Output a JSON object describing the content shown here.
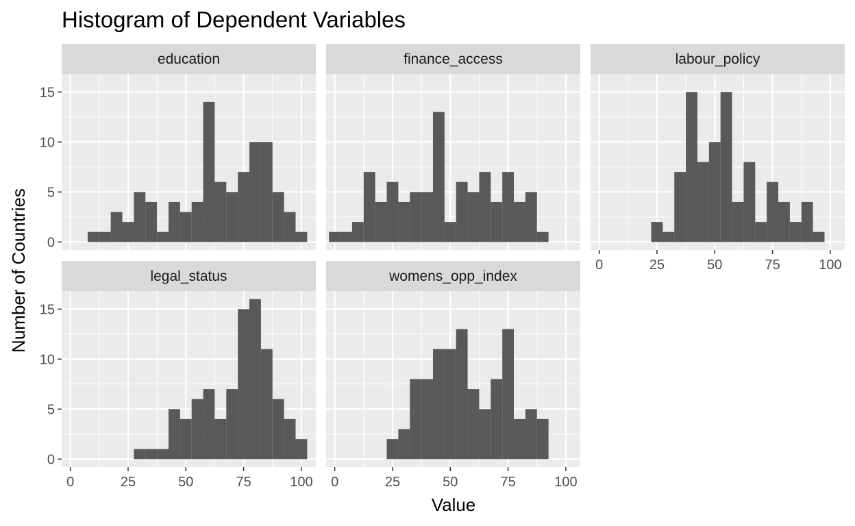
{
  "chart_data": {
    "type": "histogram",
    "title": "Histogram of Dependent Variables",
    "xlabel": "Value",
    "ylabel": "Number of Countries",
    "xlim": [
      -3.75,
      106.25
    ],
    "ylim": [
      -0.8,
      16.8
    ],
    "x_ticks": [
      0,
      25,
      50,
      75,
      100
    ],
    "y_ticks": [
      0,
      5,
      10,
      15
    ],
    "bin_width": 5,
    "grid": true,
    "panel_background": "#ebebeb",
    "strip_background": "#d9d9d9",
    "bar_color": "#595959",
    "facets": [
      {
        "label": "education",
        "bins": [
          10,
          15,
          20,
          25,
          30,
          35,
          40,
          45,
          50,
          55,
          60,
          65,
          70,
          75,
          80,
          85,
          90,
          95,
          100
        ],
        "counts": [
          1,
          1,
          3,
          2,
          5,
          4,
          1,
          4,
          3,
          4,
          14,
          6,
          5,
          7,
          10,
          10,
          5,
          3,
          1
        ]
      },
      {
        "label": "finance_access",
        "bins": [
          0,
          5,
          10,
          15,
          20,
          25,
          30,
          35,
          40,
          45,
          50,
          55,
          60,
          65,
          70,
          75,
          80,
          85,
          90
        ],
        "counts": [
          1,
          1,
          2,
          7,
          4,
          6,
          4,
          5,
          5,
          13,
          2,
          6,
          5,
          7,
          4,
          7,
          4,
          5,
          1
        ]
      },
      {
        "label": "labour_policy",
        "bins": [
          25,
          30,
          35,
          40,
          45,
          50,
          55,
          60,
          65,
          70,
          75,
          80,
          85,
          90,
          95
        ],
        "counts": [
          2,
          1,
          7,
          15,
          8,
          10,
          15,
          4,
          8,
          2,
          6,
          4,
          2,
          4,
          1
        ]
      },
      {
        "label": "legal_status",
        "bins": [
          30,
          35,
          40,
          45,
          50,
          55,
          60,
          65,
          70,
          75,
          80,
          85,
          90,
          95,
          100
        ],
        "counts": [
          1,
          1,
          1,
          5,
          4,
          6,
          7,
          4,
          7,
          15,
          16,
          11,
          6,
          4,
          2
        ]
      },
      {
        "label": "womens_opp_index",
        "bins": [
          25,
          30,
          35,
          40,
          45,
          50,
          55,
          60,
          65,
          70,
          75,
          80,
          85,
          90
        ],
        "counts": [
          2,
          3,
          8,
          8,
          11,
          11,
          13,
          7,
          5,
          8,
          13,
          4,
          5,
          4
        ]
      }
    ]
  }
}
